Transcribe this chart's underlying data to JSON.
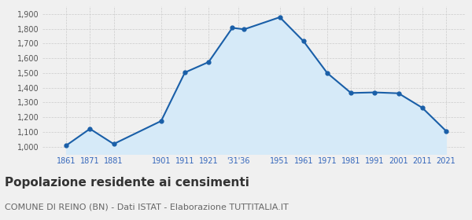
{
  "years": [
    1861,
    1871,
    1881,
    1901,
    1911,
    1921,
    1931,
    1936,
    1951,
    1961,
    1971,
    1981,
    1991,
    2001,
    2011,
    2021
  ],
  "population": [
    1008,
    1121,
    1018,
    1174,
    1503,
    1574,
    1806,
    1796,
    1878,
    1715,
    1499,
    1364,
    1368,
    1362,
    1264,
    1107
  ],
  "x_tick_positions": [
    1861,
    1871,
    1881,
    1901,
    1911,
    1921,
    1933.5,
    1951,
    1961,
    1971,
    1981,
    1991,
    2001,
    2011,
    2021
  ],
  "x_labels": [
    "1861",
    "1871",
    "1881",
    "1901",
    "1911",
    "1921",
    "'31'36",
    "1951",
    "1961",
    "1971",
    "1981",
    "1991",
    "2001",
    "2011",
    "2021"
  ],
  "ylim": [
    950,
    1950
  ],
  "yticks": [
    1000,
    1100,
    1200,
    1300,
    1400,
    1500,
    1600,
    1700,
    1800,
    1900
  ],
  "ytick_labels": [
    "1,000",
    "1,100",
    "1,200",
    "1,300",
    "1,400",
    "1,500",
    "1,600",
    "1,700",
    "1,800",
    "1,900"
  ],
  "line_color": "#1a5fa8",
  "fill_color": "#d6eaf8",
  "marker_color": "#1a5fa8",
  "grid_color": "#cccccc",
  "bg_color": "#f0f0f0",
  "title": "Popolazione residente ai censimenti",
  "subtitle": "COMUNE DI REINO (BN) - Dati ISTAT - Elaborazione TUTTITALIA.IT",
  "title_fontsize": 11,
  "subtitle_fontsize": 8,
  "tick_color": "#3366bb",
  "xlim_left": 1851,
  "xlim_right": 2029
}
